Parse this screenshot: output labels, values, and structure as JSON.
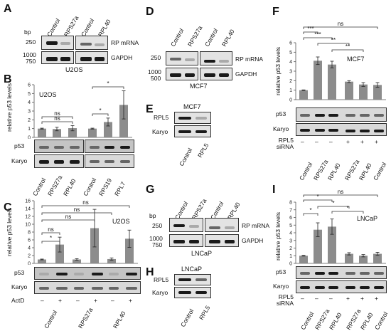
{
  "panels": {
    "A": {
      "label": "A",
      "bp": "bp",
      "lanes": [
        "Control",
        "RPS27a",
        "Control",
        "RPL40"
      ],
      "markers": [
        "250",
        "1000",
        "750"
      ],
      "bands": [
        "RP mRNA",
        "GAPDH"
      ],
      "cell": "U2OS"
    },
    "B": {
      "label": "B",
      "cell": "U2OS",
      "ylabel": "relative p53 levels",
      "lanes": [
        "Control",
        "RPS27a",
        "RPL40",
        "Control",
        "RPS19",
        "RPL7"
      ],
      "blots": [
        "p53",
        "Karyo"
      ],
      "sig": [
        "ns",
        "ns",
        "*",
        "*"
      ]
    },
    "C": {
      "label": "C",
      "cell": "U2OS",
      "ylabel": "relative p53 levels",
      "lanes": [
        "Control",
        "RPS27a",
        "RPL40"
      ],
      "actd": "ActD",
      "actd_signs": [
        "–",
        "+",
        "–",
        "+",
        "–",
        "+"
      ],
      "blots": [
        "p53",
        "Karyo"
      ],
      "sig": [
        "*",
        "ns",
        "ns",
        "ns",
        "ns"
      ]
    },
    "D": {
      "label": "D",
      "bp": "bp",
      "lanes": [
        "Control",
        "RPS27a",
        "Control",
        "RPL40"
      ],
      "markers": [
        "250",
        "1000",
        "500"
      ],
      "bands": [
        "RP mRNA",
        "GAPDH"
      ],
      "cell": "MCF7"
    },
    "E": {
      "label": "E",
      "cell": "MCF7",
      "lanes": [
        "Control",
        "RPL5"
      ],
      "blots": [
        "RPL5",
        "Karyo"
      ]
    },
    "F": {
      "label": "F",
      "cell": "MCF7",
      "ylabel": "relative p53 levels",
      "lanes": [
        "Control",
        "RPS27a",
        "RPL40",
        "RPS27a",
        "RPL40",
        "Control"
      ],
      "sirna": "RPL5\nsiRNA",
      "sirna_label": "RPL5 siRNA",
      "sirna_signs": [
        "–",
        "–",
        "–",
        "+",
        "+",
        "+"
      ],
      "blots": [
        "p53",
        "Karyo"
      ],
      "sig": [
        "ns",
        "***",
        "***",
        "**",
        "**"
      ]
    },
    "G": {
      "label": "G",
      "bp": "bp",
      "lanes": [
        "Control",
        "RPS27a",
        "Control",
        "RPL40"
      ],
      "markers": [
        "250",
        "1000",
        "750"
      ],
      "bands": [
        "RP mRNA",
        "GAPDH"
      ],
      "cell": "LNCaP"
    },
    "H": {
      "label": "H",
      "cell": "LNCaP",
      "lanes": [
        "Control",
        "RPL5"
      ],
      "blots": [
        "RPL5",
        "Karyo"
      ]
    },
    "I": {
      "label": "I",
      "cell": "LNCaP",
      "ylabel": "relative p53 levels",
      "lanes": [
        "Control",
        "RPS27a",
        "RPL40",
        "RPS27a",
        "RPL40",
        "Control"
      ],
      "sirna_label": "RPL5 siRNA",
      "sirna_signs": [
        "–",
        "–",
        "–",
        "+",
        "+",
        "+"
      ],
      "blots": [
        "p53",
        "Karyo"
      ],
      "sig": [
        "ns",
        "*",
        "*",
        "*",
        "*"
      ]
    }
  },
  "chart_data": [
    {
      "id": "B",
      "type": "bar",
      "categories": [
        "Control",
        "RPS27a",
        "RPL40",
        "Control",
        "RPS19",
        "RPL7"
      ],
      "values": [
        1.0,
        0.95,
        1.05,
        1.0,
        1.75,
        3.7
      ],
      "errors": [
        0.05,
        0.2,
        0.3,
        0.05,
        0.45,
        1.6
      ],
      "ylabel": "relative p53 levels",
      "ylim": [
        0,
        6
      ],
      "yticks": [
        0,
        1,
        2,
        3,
        4,
        5,
        6
      ]
    },
    {
      "id": "C",
      "type": "bar",
      "categories": [
        "Control",
        "Control",
        "RPS27a",
        "RPS27a",
        "RPL40",
        "RPL40"
      ],
      "values": [
        1.0,
        4.8,
        1.0,
        9.0,
        1.1,
        6.3
      ],
      "errors": [
        0.1,
        1.9,
        0.2,
        4.8,
        0.3,
        2.2
      ],
      "ylabel": "relative p53 levels",
      "ylim": [
        0,
        16
      ],
      "yticks": [
        0,
        2,
        4,
        6,
        8,
        10,
        12,
        14,
        16
      ]
    },
    {
      "id": "F",
      "type": "bar",
      "categories": [
        "Control",
        "RPS27a",
        "RPL40",
        "RPS27a",
        "RPL40",
        "Control"
      ],
      "values": [
        1.0,
        4.1,
        3.7,
        1.9,
        1.6,
        1.55
      ],
      "errors": [
        0.03,
        0.4,
        0.35,
        0.1,
        0.2,
        0.25
      ],
      "ylabel": "relative p53 levels",
      "ylim": [
        0,
        6
      ],
      "yticks": [
        0,
        1,
        2,
        3,
        4,
        5,
        6
      ]
    },
    {
      "id": "I",
      "type": "bar",
      "categories": [
        "Control",
        "RPS27a",
        "RPL40",
        "RPS27a",
        "RPL40",
        "Control"
      ],
      "values": [
        1.0,
        4.4,
        4.8,
        1.25,
        1.0,
        1.25
      ],
      "errors": [
        0.05,
        0.9,
        1.0,
        0.15,
        0.15,
        0.2
      ],
      "ylabel": "relative p53 levels",
      "ylim": [
        0,
        8
      ],
      "yticks": [
        0,
        1,
        2,
        3,
        4,
        5,
        6,
        7,
        8
      ]
    }
  ]
}
